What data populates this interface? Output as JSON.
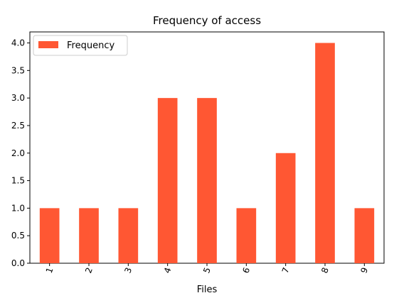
{
  "chart_data": {
    "type": "bar",
    "title": "Frequency of access",
    "xlabel": "Files",
    "ylabel": "",
    "categories": [
      "1",
      "2",
      "3",
      "4",
      "5",
      "6",
      "7",
      "8",
      "9"
    ],
    "series": [
      {
        "name": "Frequency",
        "values": [
          1,
          1,
          1,
          3,
          3,
          1,
          2,
          4,
          1
        ],
        "color": "#ff5733"
      }
    ],
    "ylim": [
      0,
      4.2
    ],
    "yticks": [
      "0.0",
      "0.5",
      "1.0",
      "1.5",
      "2.0",
      "2.5",
      "3.0",
      "3.5",
      "4.0"
    ],
    "xtick_rotation": "rotated",
    "grid": false,
    "legend": "top-left"
  }
}
